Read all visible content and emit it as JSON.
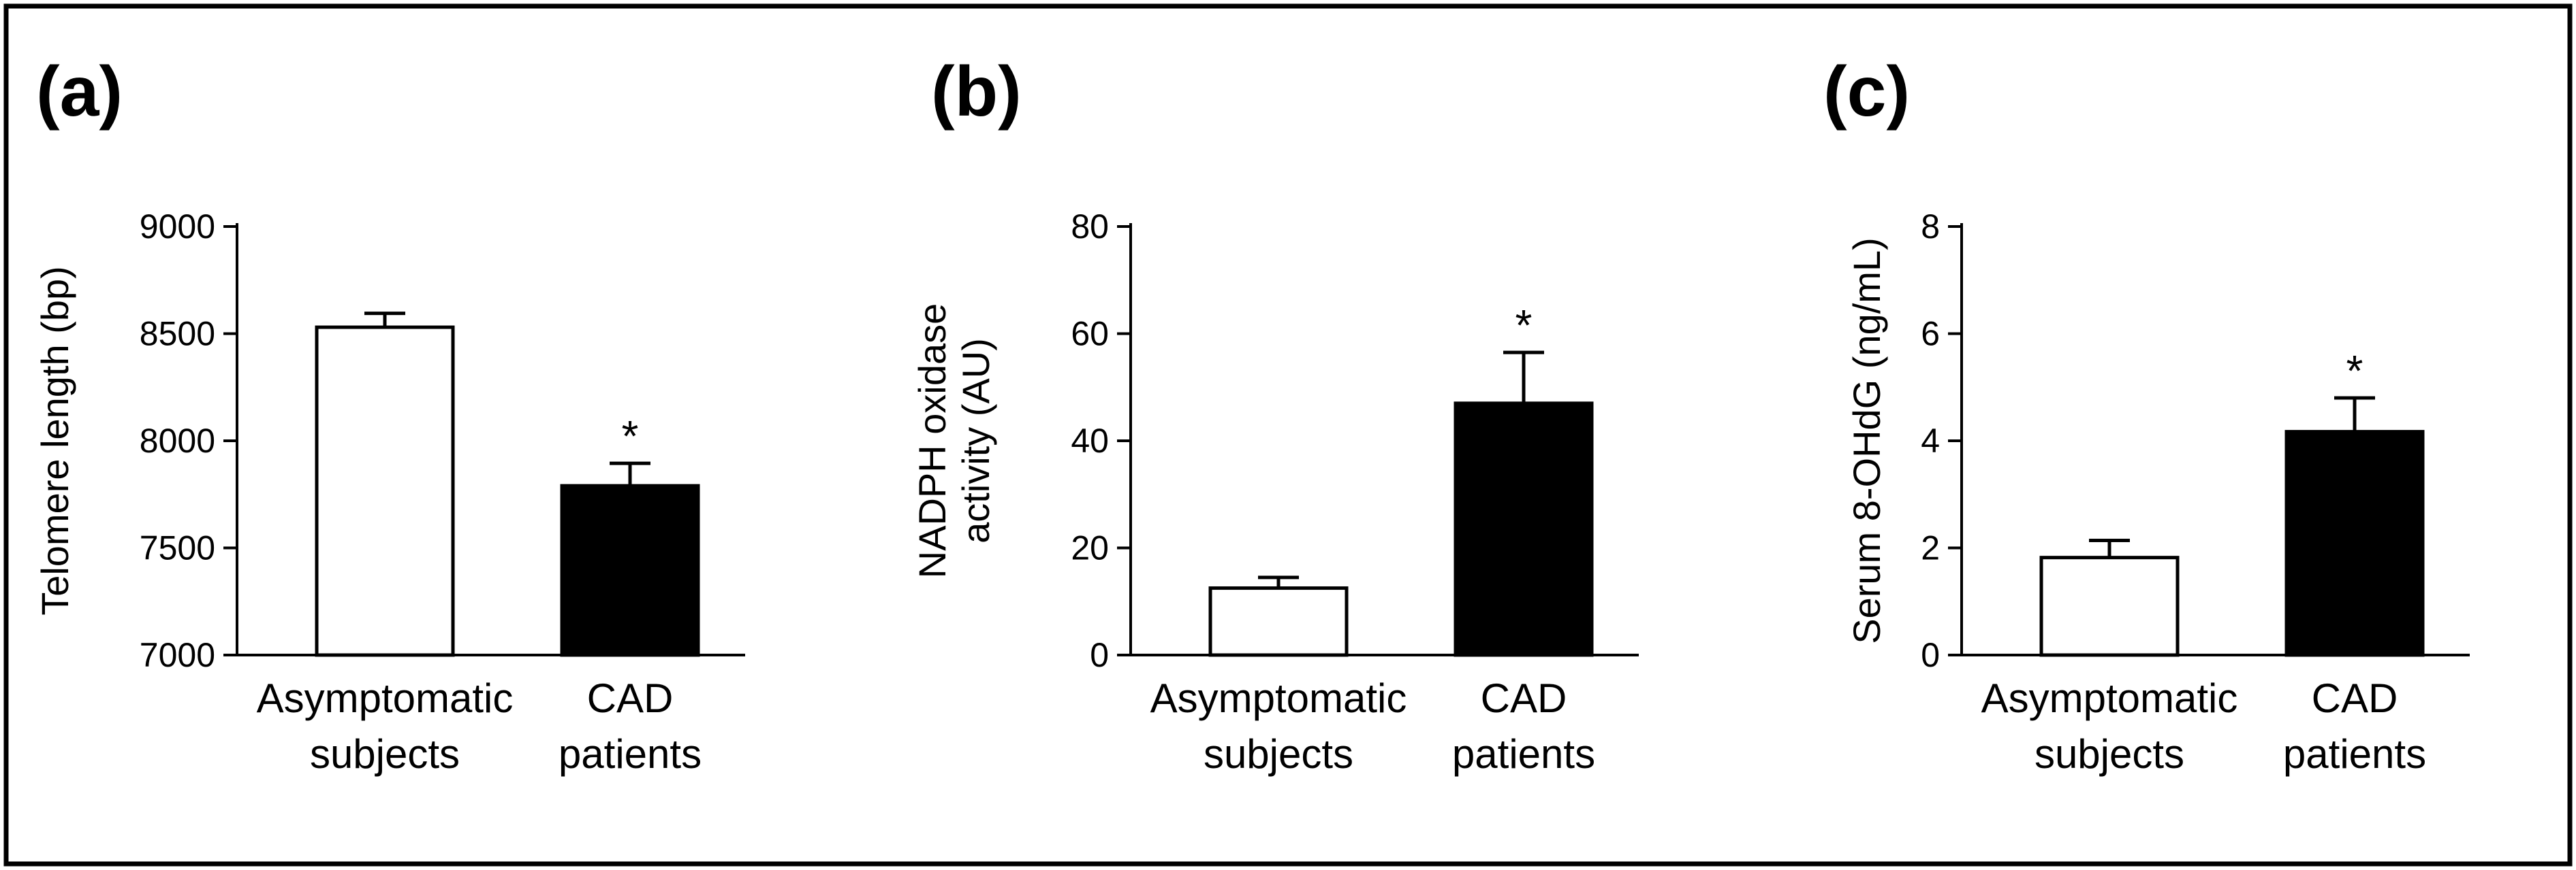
{
  "chart_data": [
    {
      "type": "bar",
      "panel_label": "(a)",
      "categories": [
        [
          "Asymptomatic",
          "subjects"
        ],
        [
          "CAD",
          "patients"
        ]
      ],
      "values": [
        8530,
        7790
      ],
      "errors": [
        65,
        105
      ],
      "fills": [
        "#ffffff",
        "#000000"
      ],
      "significance": [
        "",
        "*"
      ],
      "ylabel": [
        "Telomere length (bp)"
      ],
      "ylim": [
        7000,
        9000
      ],
      "yticks": [
        7000,
        7500,
        8000,
        8500,
        9000
      ],
      "xlabel": "",
      "grid": false
    },
    {
      "type": "bar",
      "panel_label": "(b)",
      "categories": [
        [
          "Asymptomatic",
          "subjects"
        ],
        [
          "CAD",
          "patients"
        ]
      ],
      "values": [
        12.5,
        47
      ],
      "errors": [
        2.0,
        9.5
      ],
      "fills": [
        "#ffffff",
        "#000000"
      ],
      "significance": [
        "",
        "*"
      ],
      "ylabel": [
        "NADPH oxidase",
        "activity (AU)"
      ],
      "ylim": [
        0,
        80
      ],
      "yticks": [
        0,
        20,
        40,
        60,
        80
      ],
      "xlabel": "",
      "grid": false
    },
    {
      "type": "bar",
      "panel_label": "(c)",
      "categories": [
        [
          "Asymptomatic",
          "subjects"
        ],
        [
          "CAD",
          "patients"
        ]
      ],
      "values": [
        1.82,
        4.17
      ],
      "errors": [
        0.32,
        0.63
      ],
      "fills": [
        "#ffffff",
        "#000000"
      ],
      "significance": [
        "",
        "*"
      ],
      "ylabel": [
        "Serum 8-OHdG (ng/mL)"
      ],
      "ylim": [
        0,
        8
      ],
      "yticks": [
        0,
        2,
        4,
        6,
        8
      ],
      "xlabel": "",
      "grid": false
    }
  ]
}
